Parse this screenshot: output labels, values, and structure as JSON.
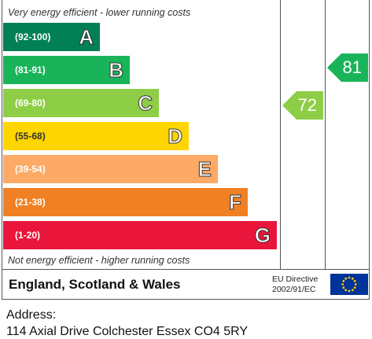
{
  "chart_data": {
    "type": "bar",
    "top_note": "Very energy efficient - lower running costs",
    "bottom_note": "Not energy efficient - higher running costs",
    "bands": [
      {
        "range": "(92-100)",
        "letter": "A",
        "color": "#008054"
      },
      {
        "range": "(81-91)",
        "letter": "B",
        "color": "#19b459"
      },
      {
        "range": "(69-80)",
        "letter": "C",
        "color": "#8dce46"
      },
      {
        "range": "(55-68)",
        "letter": "D",
        "color": "#ffd500"
      },
      {
        "range": "(39-54)",
        "letter": "E",
        "color": "#fcaa65"
      },
      {
        "range": "(21-38)",
        "letter": "F",
        "color": "#ef8023"
      },
      {
        "range": "(1-20)",
        "letter": "G",
        "color": "#e9153b"
      }
    ],
    "ratings": [
      {
        "value": 72,
        "band": "C",
        "color": "#8dce46"
      },
      {
        "value": 81,
        "band": "B",
        "color": "#19b459"
      }
    ]
  },
  "footer": {
    "region": "England, Scotland & Wales",
    "directive_line1": "EU Directive",
    "directive_line2": "2002/91/EC"
  },
  "address": {
    "label": "Address:",
    "text": "114 Axial Drive Colchester Essex CO4 5RY"
  }
}
